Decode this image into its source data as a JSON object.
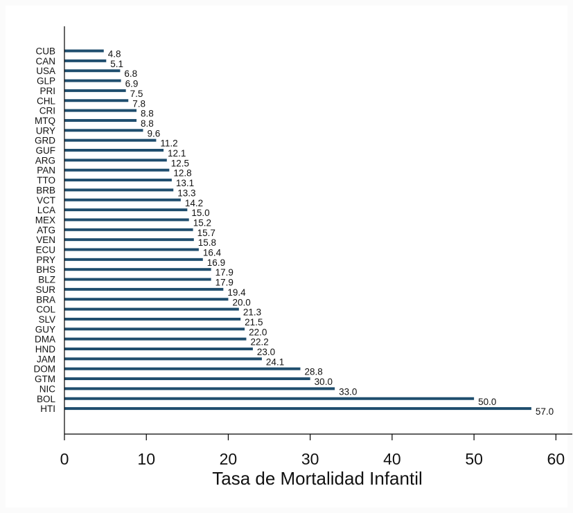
{
  "chart_data": {
    "type": "bar",
    "orientation": "horizontal",
    "categories": [
      "CUB",
      "CAN",
      "USA",
      "GLP",
      "PRI",
      "CHL",
      "CRI",
      "MTQ",
      "URY",
      "GRD",
      "GUF",
      "ARG",
      "PAN",
      "TTO",
      "BRB",
      "VCT",
      "LCA",
      "MEX",
      "ATG",
      "VEN",
      "ECU",
      "PRY",
      "BHS",
      "BLZ",
      "SUR",
      "BRA",
      "COL",
      "SLV",
      "GUY",
      "DMA",
      "HND",
      "JAM",
      "DOM",
      "GTM",
      "NIC",
      "BOL",
      "HTI"
    ],
    "values": [
      4.8,
      5.1,
      6.8,
      6.9,
      7.5,
      7.8,
      8.8,
      8.8,
      9.6,
      11.2,
      12.1,
      12.5,
      12.8,
      13.1,
      13.3,
      14.2,
      15.0,
      15.2,
      15.7,
      15.8,
      16.4,
      16.9,
      17.9,
      17.9,
      19.4,
      20.0,
      21.3,
      21.5,
      22.0,
      22.2,
      23.0,
      24.1,
      28.8,
      30.0,
      33.0,
      50.0,
      57.0
    ],
    "value_labels": [
      "4.8",
      "5.1",
      "6.8",
      "6.9",
      "7.5",
      "7.8",
      "8.8",
      "8.8",
      "9.6",
      "11.2",
      "12.1",
      "12.5",
      "12.8",
      "13.1",
      "13.3",
      "14.2",
      "15.0",
      "15.2",
      "15.7",
      "15.8",
      "16.4",
      "16.9",
      "17.9",
      "17.9",
      "19.4",
      "20.0",
      "21.3",
      "21.5",
      "22.0",
      "22.2",
      "23.0",
      "24.1",
      "28.8",
      "30.0",
      "33.0",
      "50.0",
      "57.0"
    ],
    "x_ticks": [
      0,
      10,
      20,
      30,
      40,
      50,
      60
    ],
    "x_tick_labels": [
      "0",
      "10",
      "20",
      "30",
      "40",
      "50",
      "60"
    ],
    "xlim": [
      0,
      62
    ],
    "xlabel": "Tasa de Mortalidad Infantil",
    "title": "",
    "grid": false,
    "bar_color": "#1f4e6e"
  }
}
